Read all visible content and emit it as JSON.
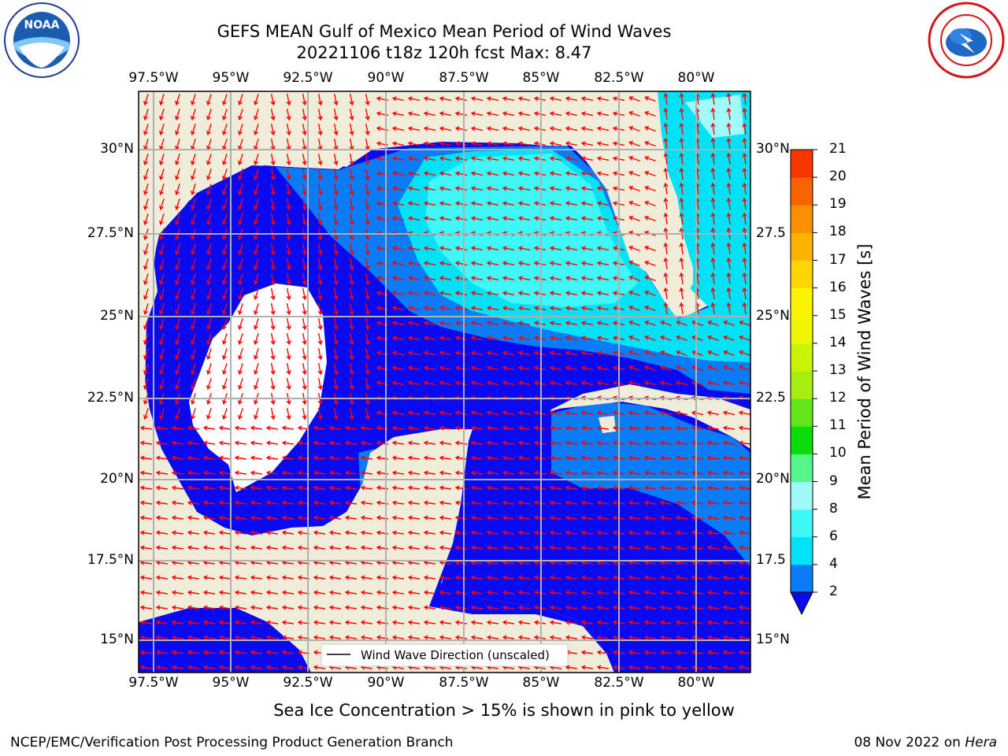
{
  "header": {
    "title_line1": "GEFS MEAN Gulf of Mexico Mean Period of Wind Waves",
    "title_line2": "20221106 t18z 120h fcst   Max: 8.47"
  },
  "logos": {
    "noara_text": "NOAA",
    "noaa_ring_text": "NATIONAL OCEANIC AND ATMOSPHERIC ADMINISTRATION · U.S. DEPARTMENT OF COMMERCE",
    "nws_ring_text": "NATIONAL WEATHER SERVICE"
  },
  "map": {
    "lon_labels": [
      "97.5°W",
      "95°W",
      "92.5°W",
      "90°W",
      "87.5°W",
      "85°W",
      "82.5°W",
      "80°W"
    ],
    "lat_labels": [
      "30°N",
      "27.5°N",
      "25°N",
      "22.5°N",
      "20°N",
      "17.5°N",
      "15°N"
    ],
    "lat_labels_right": [
      "30°N",
      "27.5",
      "25°N",
      "22.5",
      "20°N",
      "17.5",
      "15°N"
    ],
    "legend_label": "Wind Wave Direction (unscaled)"
  },
  "colorbar": {
    "label": "Mean Period of Wind Waves [s]",
    "ticks": [
      "2",
      "4",
      "6",
      "8",
      "9",
      "10",
      "11",
      "12",
      "13",
      "14",
      "15",
      "16",
      "17",
      "18",
      "19",
      "20",
      "21"
    ],
    "colors": [
      "#0a7cf5",
      "#00e3f7",
      "#3ff7f7",
      "#a0fafa",
      "#55f58a",
      "#0cdc0c",
      "#64e61c",
      "#a6ee10",
      "#c9f505",
      "#eef700",
      "#fbf401",
      "#fdd600",
      "#fdb300",
      "#fb8f00",
      "#f96300",
      "#f83600",
      "#f60000"
    ],
    "extend_color": "#0a0af0"
  },
  "map_colors": {
    "land": "#efedd9",
    "band_2_4": "#0a7cf5",
    "band_4_6": "#00e3f7",
    "band_6_8": "#3ff7f7",
    "below_2": "#0a0af0",
    "arrow": "#ff0000"
  },
  "footer": {
    "note": "Sea Ice Concentration > 15% is shown in pink to yellow",
    "left": "NCEP/EMC/Verification Post Processing Product Generation Branch",
    "right_date": "08 Nov 2022 on ",
    "right_host": "Hera"
  }
}
